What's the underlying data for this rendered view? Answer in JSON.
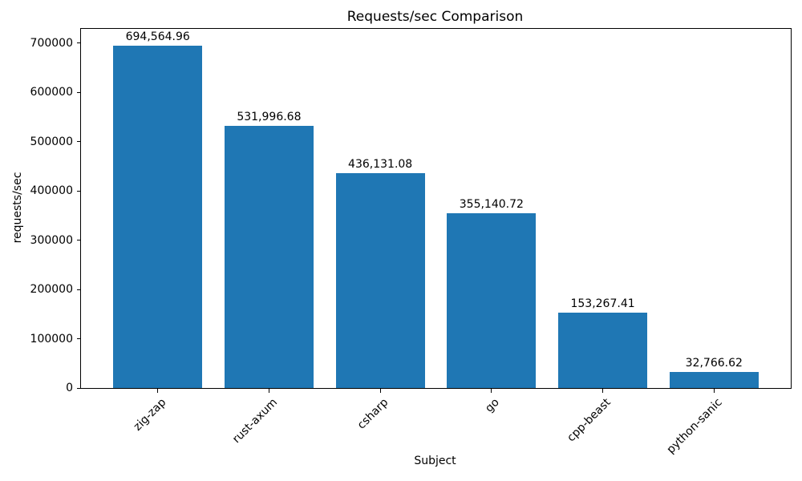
{
  "chart_data": {
    "type": "bar",
    "title": "Requests/sec Comparison",
    "xlabel": "Subject",
    "ylabel": "requests/sec",
    "categories": [
      "zig-zap",
      "rust-axum",
      "csharp",
      "go",
      "cpp-beast",
      "python-sanic"
    ],
    "values": [
      694564.96,
      531996.68,
      436131.08,
      355140.72,
      153267.41,
      32766.62
    ],
    "value_labels": [
      "694,564.96",
      "531,996.68",
      "436,131.08",
      "355,140.72",
      "153,267.41",
      "32,766.62"
    ],
    "yticks": [
      0,
      100000,
      200000,
      300000,
      400000,
      500000,
      600000,
      700000
    ],
    "ytick_labels": [
      "0",
      "100000",
      "200000",
      "300000",
      "400000",
      "500000",
      "600000",
      "700000"
    ],
    "ylim": [
      0,
      729293
    ],
    "bar_color": "#1f77b4",
    "bar_width_fraction": 0.8,
    "grid": false,
    "legend": null
  }
}
